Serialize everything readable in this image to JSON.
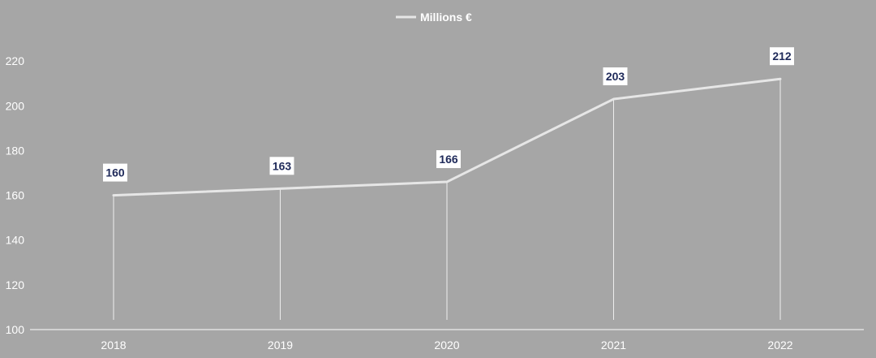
{
  "chart_data": {
    "type": "line",
    "categories": [
      "2018",
      "2019",
      "2020",
      "2021",
      "2022"
    ],
    "series": [
      {
        "name": "Millions €",
        "values": [
          160,
          163,
          166,
          203,
          212
        ]
      }
    ],
    "data_labels": [
      "160",
      "163",
      "166",
      "203",
      "212"
    ],
    "yticks": [
      100,
      120,
      140,
      160,
      180,
      200,
      220
    ],
    "ylim": [
      100,
      230
    ],
    "title": "",
    "xlabel": "",
    "ylabel": "",
    "grid": false,
    "drop_lines": true,
    "legend_position": "top-center",
    "colors": {
      "background": "#a6a6a6",
      "line": "#e6e6e6",
      "drop_line": "#ffffff",
      "label_box": "#ffffff",
      "label_text": "#1f2a5a",
      "axis_text": "#ffffff"
    }
  }
}
